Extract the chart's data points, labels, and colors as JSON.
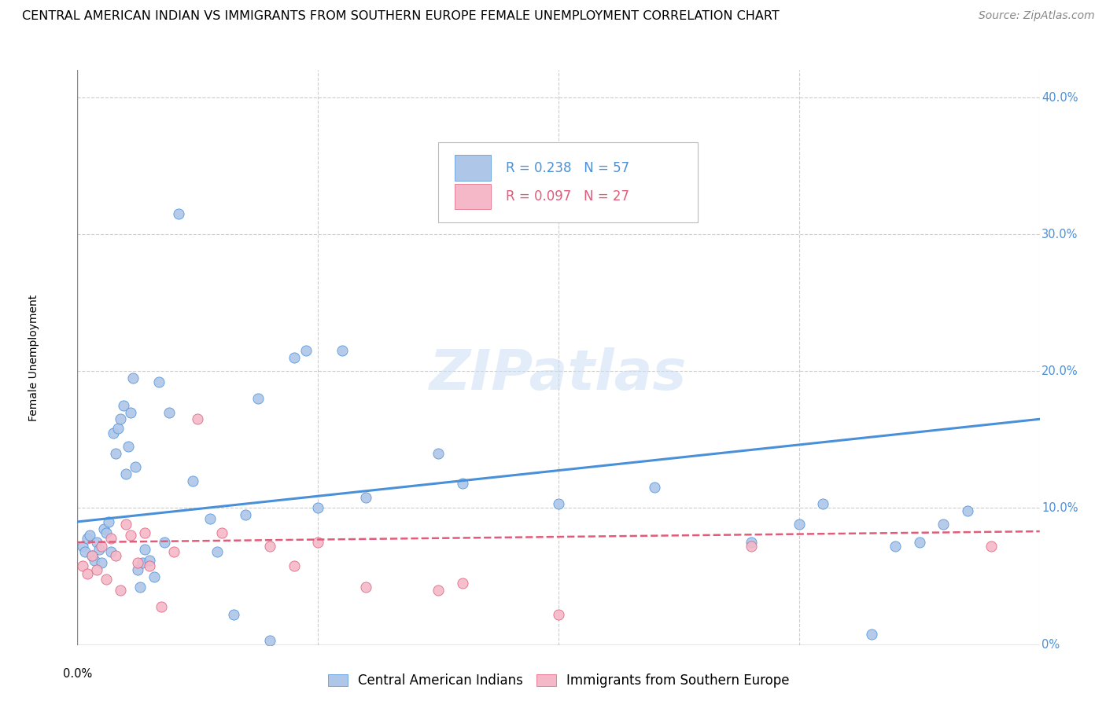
{
  "title": "CENTRAL AMERICAN INDIAN VS IMMIGRANTS FROM SOUTHERN EUROPE FEMALE UNEMPLOYMENT CORRELATION CHART",
  "source": "Source: ZipAtlas.com",
  "ylabel": "Female Unemployment",
  "blue_R": 0.238,
  "blue_N": 57,
  "pink_R": 0.097,
  "pink_N": 27,
  "blue_color": "#aec6e8",
  "pink_color": "#f5b8c8",
  "blue_line_color": "#4a90d9",
  "pink_line_color": "#e05c7a",
  "grid_color": "#cccccc",
  "watermark": "ZIPatlas",
  "legend_label_blue": "Central American Indians",
  "legend_label_pink": "Immigrants from Southern Europe",
  "xlim": [
    0.0,
    0.4
  ],
  "ylim": [
    0.0,
    0.42
  ],
  "ytick_vals": [
    0.0,
    0.1,
    0.2,
    0.3,
    0.4
  ],
  "ytick_labels": [
    "0%",
    "10.0%",
    "20.0%",
    "30.0%",
    "40.0%"
  ],
  "blue_scatter_x": [
    0.002,
    0.003,
    0.004,
    0.005,
    0.006,
    0.007,
    0.008,
    0.009,
    0.01,
    0.011,
    0.012,
    0.013,
    0.014,
    0.015,
    0.016,
    0.017,
    0.018,
    0.019,
    0.02,
    0.021,
    0.022,
    0.023,
    0.024,
    0.025,
    0.026,
    0.027,
    0.028,
    0.03,
    0.032,
    0.034,
    0.036,
    0.038,
    0.042,
    0.048,
    0.055,
    0.058,
    0.065,
    0.07,
    0.075,
    0.08,
    0.09,
    0.095,
    0.1,
    0.11,
    0.12,
    0.15,
    0.16,
    0.2,
    0.24,
    0.28,
    0.3,
    0.31,
    0.33,
    0.34,
    0.35,
    0.36,
    0.37
  ],
  "blue_scatter_y": [
    0.072,
    0.068,
    0.078,
    0.08,
    0.065,
    0.062,
    0.075,
    0.07,
    0.06,
    0.085,
    0.082,
    0.09,
    0.068,
    0.155,
    0.14,
    0.158,
    0.165,
    0.175,
    0.125,
    0.145,
    0.17,
    0.195,
    0.13,
    0.055,
    0.042,
    0.06,
    0.07,
    0.062,
    0.05,
    0.192,
    0.075,
    0.17,
    0.315,
    0.12,
    0.092,
    0.068,
    0.022,
    0.095,
    0.18,
    0.003,
    0.21,
    0.215,
    0.1,
    0.215,
    0.108,
    0.14,
    0.118,
    0.103,
    0.115,
    0.075,
    0.088,
    0.103,
    0.008,
    0.072,
    0.075,
    0.088,
    0.098
  ],
  "pink_scatter_x": [
    0.002,
    0.004,
    0.006,
    0.008,
    0.01,
    0.012,
    0.014,
    0.016,
    0.018,
    0.02,
    0.022,
    0.025,
    0.028,
    0.03,
    0.035,
    0.04,
    0.05,
    0.06,
    0.08,
    0.09,
    0.1,
    0.12,
    0.15,
    0.16,
    0.2,
    0.28,
    0.38
  ],
  "pink_scatter_y": [
    0.058,
    0.052,
    0.065,
    0.055,
    0.072,
    0.048,
    0.078,
    0.065,
    0.04,
    0.088,
    0.08,
    0.06,
    0.082,
    0.058,
    0.028,
    0.068,
    0.165,
    0.082,
    0.072,
    0.058,
    0.075,
    0.042,
    0.04,
    0.045,
    0.022,
    0.072,
    0.072
  ],
  "blue_trend_x": [
    0.0,
    0.4
  ],
  "blue_trend_y": [
    0.09,
    0.165
  ],
  "pink_trend_x": [
    0.0,
    0.4
  ],
  "pink_trend_y": [
    0.075,
    0.083
  ],
  "title_fontsize": 11.5,
  "source_fontsize": 10,
  "axis_label_fontsize": 10,
  "tick_fontsize": 10.5,
  "watermark_fontsize": 52,
  "legend_fontsize": 12
}
